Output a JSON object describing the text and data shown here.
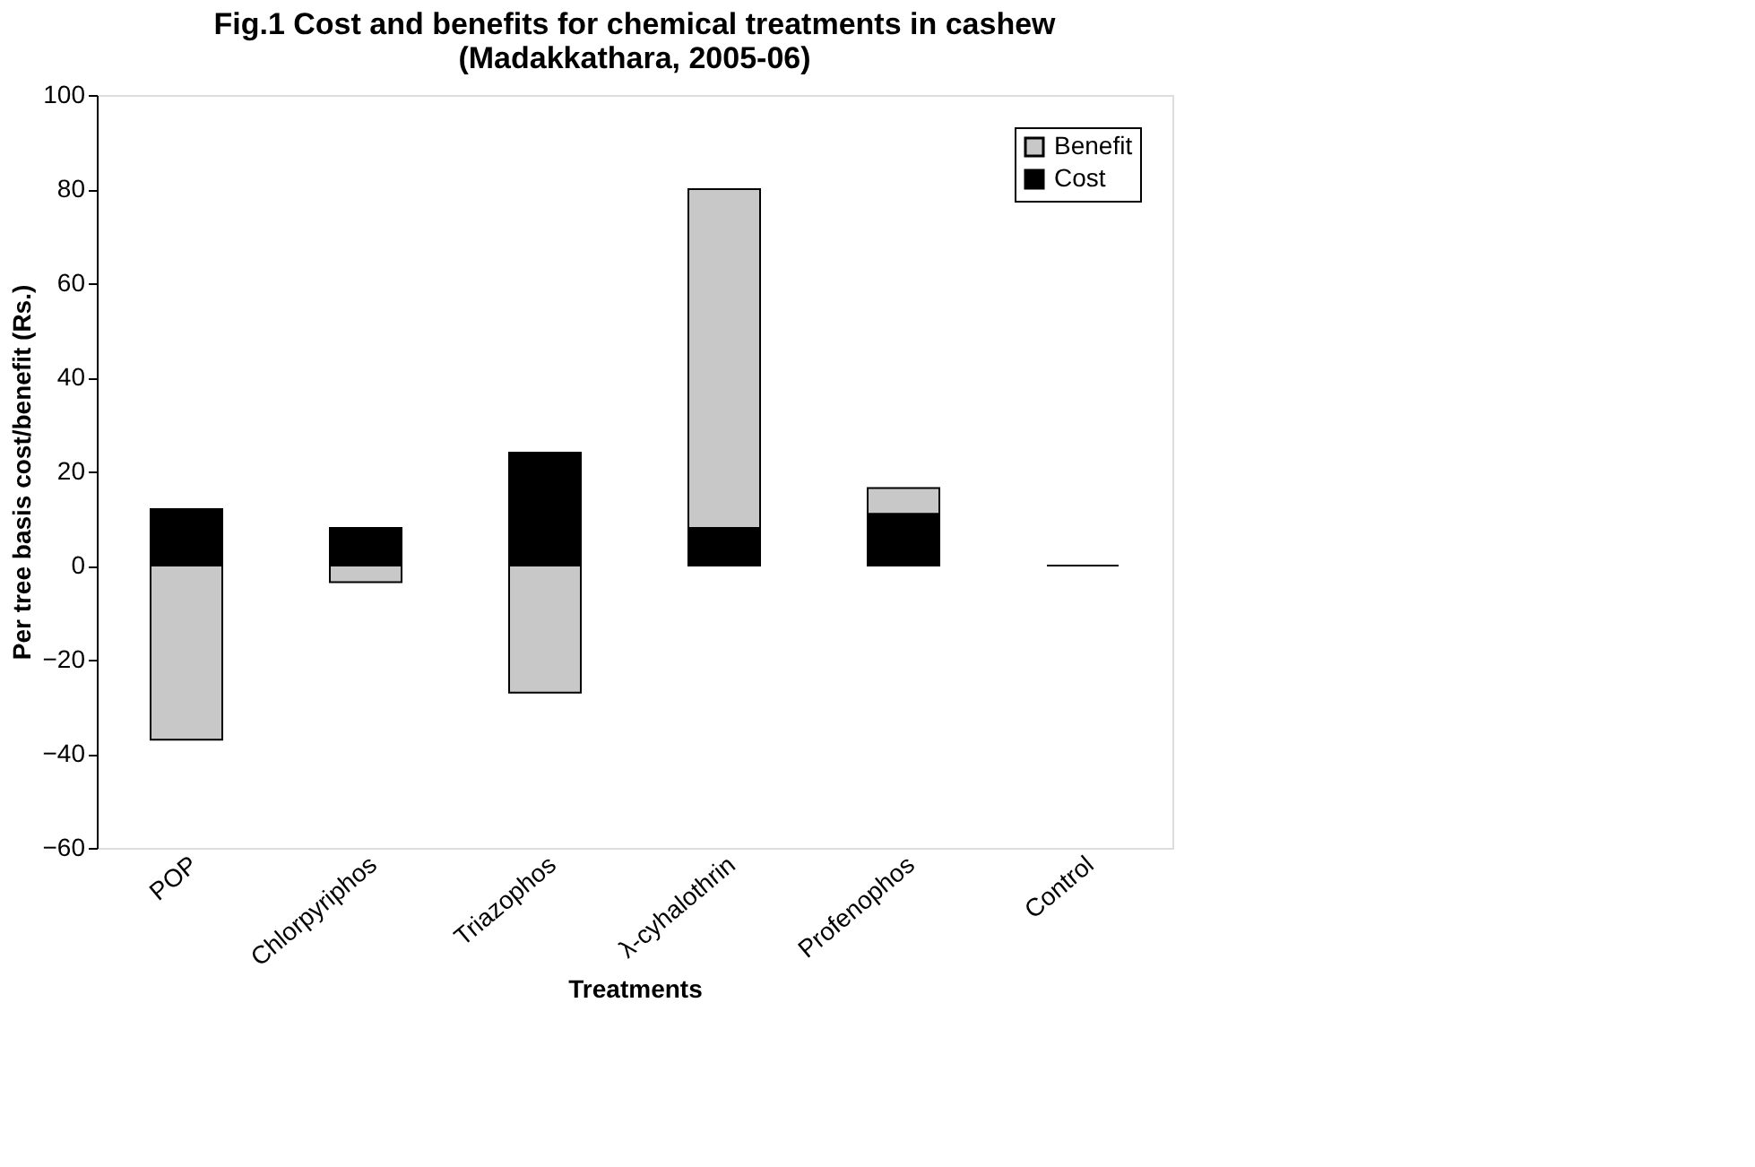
{
  "chart_data": {
    "type": "bar",
    "title": [
      "Fig.1 Cost and benefits for chemical treatments in cashew",
      "(Madakkathara, 2005-06)"
    ],
    "xlabel": "Treatments",
    "ylabel": "Per tree basis cost/benefit (Rs.)",
    "categories": [
      "POP",
      "Chlorpyriphos",
      "Triazophos",
      "λ-cyhalothrin",
      "Profenophos",
      "Control"
    ],
    "stacked": true,
    "series": [
      {
        "name": "Cost",
        "color": "#000000",
        "values": [
          12,
          8,
          24,
          8,
          11,
          0
        ]
      },
      {
        "name": "Benefit",
        "color": "#c8c8c8",
        "values": [
          -37,
          -3.5,
          -27,
          72,
          5.5,
          0
        ]
      }
    ],
    "ylim": [
      -60,
      100
    ],
    "yticks": [
      -60,
      -40,
      -20,
      0,
      20,
      40,
      60,
      80,
      100
    ],
    "grid": false,
    "legend": "top right"
  }
}
